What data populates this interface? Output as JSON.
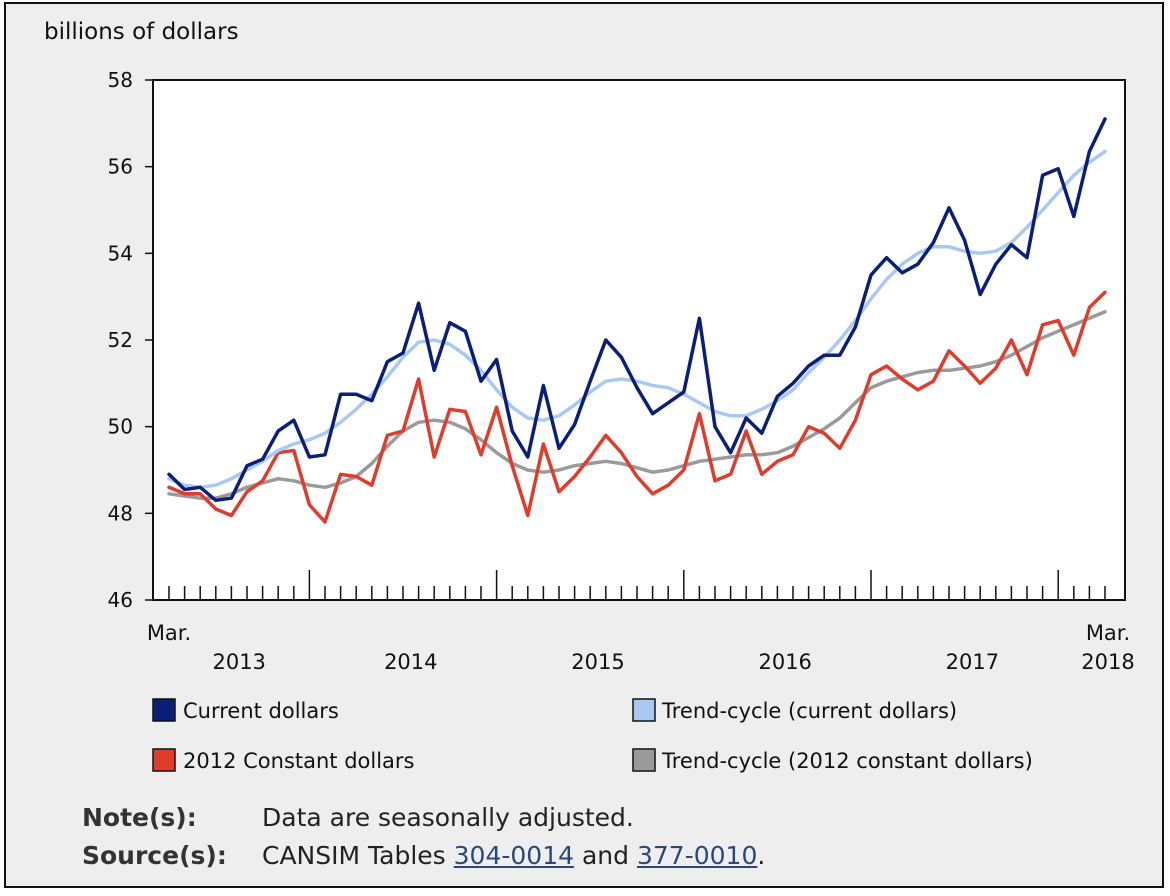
{
  "chart_data": {
    "type": "line",
    "ylabel": "billions of dollars",
    "ylim": [
      46,
      58
    ],
    "yticks": [
      46,
      48,
      50,
      52,
      54,
      56,
      58
    ],
    "x_start_label": "Mar.",
    "x_end_label": "Mar.",
    "year_labels": [
      "2013",
      "2014",
      "2015",
      "2016",
      "2017",
      "2018"
    ],
    "x_first_month": "2013-03",
    "x_last_month": "2018-03",
    "grid": false,
    "series": [
      {
        "name": "Current dollars",
        "color": "#0b1f78",
        "values": [
          48.9,
          48.55,
          48.6,
          48.3,
          48.35,
          49.1,
          49.25,
          49.9,
          50.15,
          49.3,
          49.35,
          50.75,
          50.75,
          50.6,
          51.5,
          51.7,
          52.85,
          51.3,
          52.4,
          52.2,
          51.05,
          51.55,
          49.9,
          49.3,
          50.95,
          49.5,
          50.05,
          51.05,
          52.0,
          51.6,
          50.9,
          50.3,
          50.55,
          50.8,
          52.5,
          50.0,
          49.4,
          50.2,
          49.85,
          50.7,
          51.0,
          51.4,
          51.65,
          51.65,
          52.3,
          53.5,
          53.9,
          53.55,
          53.75,
          54.25,
          55.05,
          54.3,
          53.05,
          53.75,
          54.2,
          53.9,
          55.8,
          55.95,
          54.85,
          56.35,
          57.1
        ]
      },
      {
        "name": "Trend-cycle (current dollars)",
        "color": "#a9c9f0",
        "values": [
          48.8,
          48.65,
          48.6,
          48.65,
          48.8,
          49.0,
          49.2,
          49.45,
          49.6,
          49.7,
          49.85,
          50.1,
          50.4,
          50.75,
          51.15,
          51.6,
          51.95,
          52.0,
          51.9,
          51.65,
          51.3,
          50.85,
          50.45,
          50.2,
          50.15,
          50.25,
          50.5,
          50.8,
          51.05,
          51.1,
          51.05,
          50.95,
          50.9,
          50.75,
          50.55,
          50.35,
          50.25,
          50.25,
          50.4,
          50.6,
          50.85,
          51.25,
          51.6,
          52.0,
          52.45,
          52.95,
          53.4,
          53.75,
          54.0,
          54.15,
          54.15,
          54.05,
          54.0,
          54.05,
          54.25,
          54.6,
          55.0,
          55.4,
          55.8,
          56.1,
          56.35
        ]
      },
      {
        "name": "2012 Constant dollars",
        "color": "#e03c2c",
        "values": [
          48.6,
          48.45,
          48.45,
          48.1,
          47.95,
          48.5,
          48.75,
          49.4,
          49.45,
          48.2,
          47.8,
          48.9,
          48.85,
          48.65,
          49.8,
          49.9,
          51.1,
          49.3,
          50.4,
          50.35,
          49.35,
          50.45,
          49.1,
          47.95,
          49.6,
          48.5,
          48.85,
          49.3,
          49.8,
          49.4,
          48.85,
          48.45,
          48.65,
          49.0,
          50.3,
          48.75,
          48.9,
          49.9,
          48.9,
          49.2,
          49.35,
          50.0,
          49.85,
          49.5,
          50.15,
          51.2,
          51.4,
          51.1,
          50.85,
          51.05,
          51.75,
          51.4,
          51.0,
          51.35,
          52.0,
          51.2,
          52.35,
          52.45,
          51.65,
          52.75,
          53.1
        ]
      },
      {
        "name": "Trend-cycle (2012 constant dollars)",
        "color": "#9a9a9a",
        "values": [
          48.45,
          48.4,
          48.35,
          48.35,
          48.45,
          48.6,
          48.7,
          48.8,
          48.75,
          48.65,
          48.6,
          48.7,
          48.85,
          49.15,
          49.55,
          49.9,
          50.1,
          50.15,
          50.1,
          49.95,
          49.7,
          49.4,
          49.15,
          49.0,
          48.95,
          49.0,
          49.1,
          49.15,
          49.2,
          49.15,
          49.05,
          48.95,
          49.0,
          49.1,
          49.2,
          49.25,
          49.3,
          49.35,
          49.35,
          49.4,
          49.55,
          49.75,
          49.95,
          50.2,
          50.55,
          50.9,
          51.05,
          51.15,
          51.25,
          51.3,
          51.3,
          51.35,
          51.4,
          51.5,
          51.65,
          51.85,
          52.05,
          52.2,
          52.35,
          52.5,
          52.65
        ]
      }
    ]
  },
  "legend": [
    {
      "label": "Current dollars",
      "color": "#0b1f78"
    },
    {
      "label": "Trend-cycle (current dollars)",
      "color": "#a9c9f0"
    },
    {
      "label": "2012 Constant dollars",
      "color": "#e03c2c"
    },
    {
      "label": "Trend-cycle (2012 constant dollars)",
      "color": "#9a9a9a"
    }
  ],
  "notes": {
    "note_label": "Note(s):",
    "note_text": "Data are seasonally adjusted.",
    "source_label": "Source(s):",
    "source_prefix": "CANSIM Tables",
    "link1": "304-0014",
    "source_mid": "and",
    "link2": "377-0010",
    "source_suffix": "."
  }
}
